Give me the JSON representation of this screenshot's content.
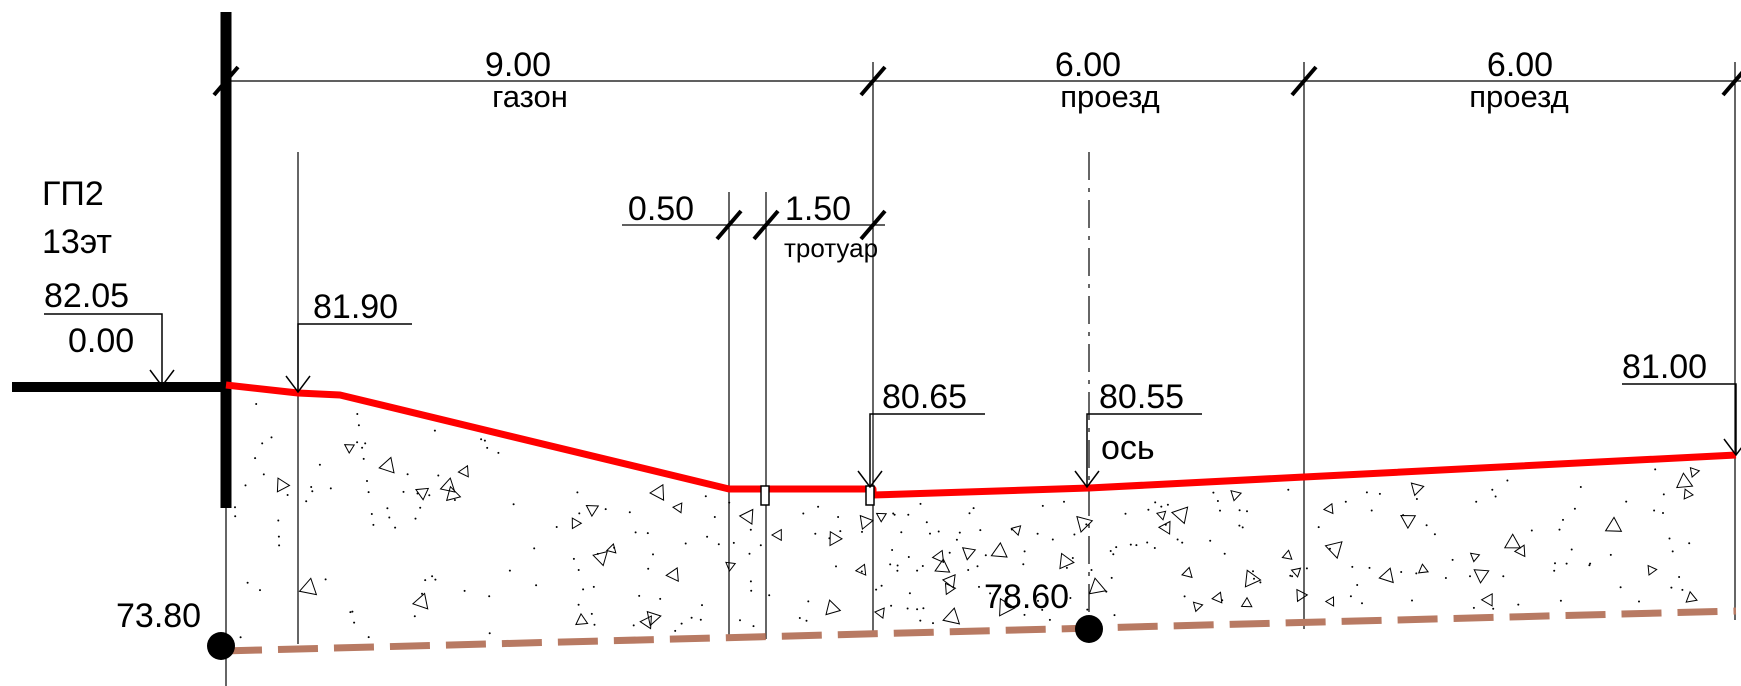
{
  "building": {
    "name": "ГП2",
    "floors": "13эт",
    "elevation_abs": "82.05",
    "elevation_rel": "0.00"
  },
  "dimensions": {
    "lawn": {
      "value": "9.00",
      "label": "газон"
    },
    "road_1": {
      "value": "6.00",
      "label": "проезд"
    },
    "road_2": {
      "value": "6.00",
      "label": "проезд"
    },
    "strip": {
      "value": "0.50"
    },
    "sidewalk": {
      "value": "1.50",
      "label": "тротуар"
    }
  },
  "elevations": {
    "lawn_edge": "81.90",
    "sidewalk": "80.65",
    "axis": "80.55",
    "axis_label": "ось",
    "road_end": "81.00",
    "bottom_left": "73.80",
    "bottom_mid": "78.60"
  },
  "colors": {
    "finished_grade": "#ff0000",
    "natural_ground": "#b87a63",
    "lines": "#000000"
  }
}
